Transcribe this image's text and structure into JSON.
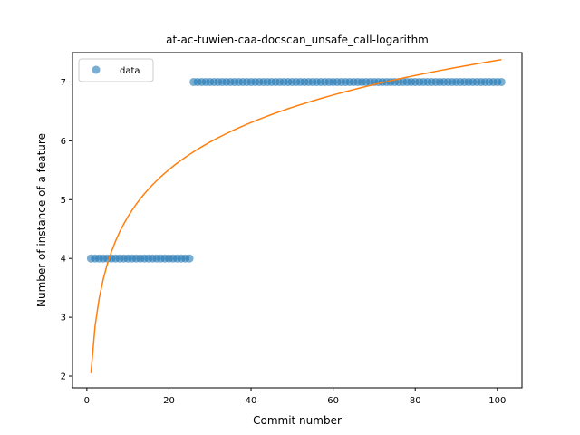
{
  "chart_data": {
    "type": "scatter",
    "title": "at-ac-tuwien-caa-docscan_unsafe_call-logarithm",
    "xlabel": "Commit number",
    "ylabel": "Number of instance of a feature",
    "xlim": [
      -3.5,
      106
    ],
    "ylim": [
      1.8,
      7.5
    ],
    "xticks": [
      0,
      20,
      40,
      60,
      80,
      100
    ],
    "yticks": [
      2,
      3,
      4,
      5,
      6,
      7
    ],
    "grid": false,
    "legend": {
      "placement": "top-left",
      "entries": [
        "data"
      ]
    },
    "series": [
      {
        "name": "data",
        "kind": "points",
        "color": "#1f77b4",
        "segments": [
          {
            "x_from": 1,
            "x_to": 25,
            "y": 4
          },
          {
            "x_from": 26,
            "x_to": 101,
            "y": 7
          }
        ]
      },
      {
        "kind": "fit-line",
        "color": "#ff7f0e",
        "x_from": 1,
        "x_to": 101,
        "fit": {
          "model": "logarithmic",
          "a": 2.05,
          "b": 1.155
        }
      }
    ]
  }
}
